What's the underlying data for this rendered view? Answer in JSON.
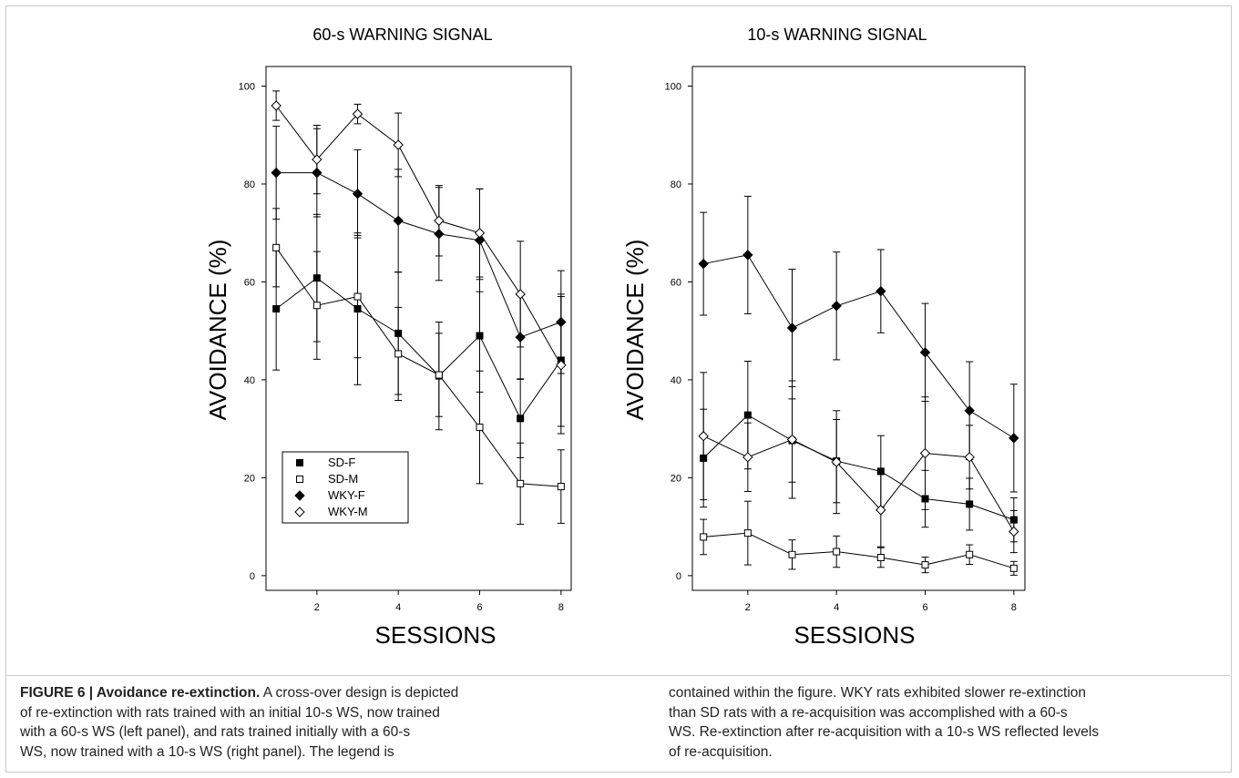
{
  "panels": [
    {
      "title": "60-s WARNING SIGNAL",
      "ylabel": "AVOIDANCE (%)",
      "xlabel": "SESSIONS"
    },
    {
      "title": "10-s WARNING SIGNAL",
      "ylabel": "AVOIDANCE (%)",
      "xlabel": "SESSIONS"
    }
  ],
  "legend": {
    "entries": [
      "SD-F",
      "SD-M",
      "WKY-F",
      "WKY-M"
    ],
    "placement": "bottom-left of left panel"
  },
  "chart_data": [
    {
      "type": "line",
      "title": "60-s WARNING SIGNAL",
      "xlabel": "SESSIONS",
      "ylabel": "AVOIDANCE (%)",
      "x": [
        1,
        2,
        3,
        4,
        5,
        6,
        7,
        8
      ],
      "xticks": [
        2,
        4,
        6,
        8
      ],
      "yticks": [
        0,
        20,
        40,
        60,
        80,
        100
      ],
      "xlim": [
        0.75,
        8.25
      ],
      "ylim": [
        -3,
        104
      ],
      "grid": false,
      "series": [
        {
          "name": "SD-F",
          "marker": "filled-square",
          "values": [
            54.5,
            60.8,
            54.5,
            49.5,
            40.8,
            49.0,
            32.1,
            44.0
          ],
          "err": [
            12.5,
            13.0,
            15.5,
            12.5,
            11.0,
            11.5,
            8.0,
            13.5
          ]
        },
        {
          "name": "SD-M",
          "marker": "open-square",
          "values": [
            67.0,
            55.2,
            57.0,
            45.3,
            41.0,
            30.3,
            18.8,
            18.2
          ],
          "err": [
            8.0,
            11.0,
            12.5,
            9.5,
            8.5,
            11.5,
            8.3,
            7.5
          ]
        },
        {
          "name": "WKY-F",
          "marker": "filled-diamond",
          "values": [
            82.3,
            82.3,
            78.0,
            72.5,
            69.8,
            68.5,
            48.7,
            51.8
          ],
          "err": [
            9.5,
            9.0,
            9.0,
            10.5,
            9.5,
            10.5,
            8.5,
            10.5
          ]
        },
        {
          "name": "WKY-M",
          "marker": "open-diamond",
          "values": [
            96.0,
            85.0,
            94.3,
            88.0,
            72.5,
            70.0,
            57.5,
            43.0
          ],
          "err": [
            3.0,
            7.0,
            2.0,
            6.5,
            7.2,
            9.0,
            10.8,
            14.0
          ]
        }
      ]
    },
    {
      "type": "line",
      "title": "10-s WARNING SIGNAL",
      "xlabel": "SESSIONS",
      "ylabel": "AVOIDANCE (%)",
      "x": [
        1,
        2,
        3,
        4,
        5,
        6,
        7,
        8
      ],
      "xticks": [
        2,
        4,
        6,
        8
      ],
      "yticks": [
        0,
        20,
        40,
        60,
        80,
        100
      ],
      "xlim": [
        0.75,
        8.25
      ],
      "ylim": [
        -3,
        104
      ],
      "grid": false,
      "series": [
        {
          "name": "SD-F",
          "marker": "filled-square",
          "values": [
            24.0,
            32.8,
            27.6,
            23.4,
            21.3,
            15.7,
            14.6,
            11.4
          ],
          "err": [
            10.0,
            11.0,
            8.5,
            8.5,
            7.3,
            5.8,
            5.3,
            4.5
          ]
        },
        {
          "name": "SD-M",
          "marker": "open-square",
          "values": [
            7.9,
            8.7,
            4.3,
            4.9,
            3.7,
            2.2,
            4.3,
            1.5
          ],
          "err": [
            3.6,
            6.5,
            3.0,
            3.2,
            2.0,
            1.6,
            2.0,
            1.4
          ]
        },
        {
          "name": "WKY-F",
          "marker": "filled-diamond",
          "values": [
            63.7,
            65.5,
            50.6,
            55.1,
            58.1,
            45.6,
            33.7,
            28.1
          ],
          "err": [
            10.5,
            12.0,
            12.0,
            11.0,
            8.5,
            10.0,
            10.0,
            11.0
          ]
        },
        {
          "name": "WKY-M",
          "marker": "open-diamond",
          "values": [
            28.5,
            24.2,
            27.8,
            23.2,
            13.4,
            25.0,
            24.2,
            9.0
          ],
          "err": [
            13.0,
            7.0,
            12.0,
            10.5,
            7.5,
            11.5,
            6.5,
            4.3
          ]
        }
      ]
    }
  ],
  "caption": {
    "label": "FIGURE 6 | Avoidance re-extinction.",
    "left_lines": [
      " A cross-over design is depicted",
      "of re-extinction with rats trained with an initial 10-s WS, now trained",
      "with a 60-s WS (left panel), and rats trained initially with a 60-s",
      "WS, now trained with a 10-s WS (right panel). The legend is"
    ],
    "right_lines": [
      "contained within the figure. WKY rats exhibited slower re-extinction",
      "than SD rats with a re-acquisition was accomplished with a 60-s",
      "WS. Re-extinction after re-acquisition with a 10-s WS reflected levels",
      "of re-acquisition."
    ]
  }
}
